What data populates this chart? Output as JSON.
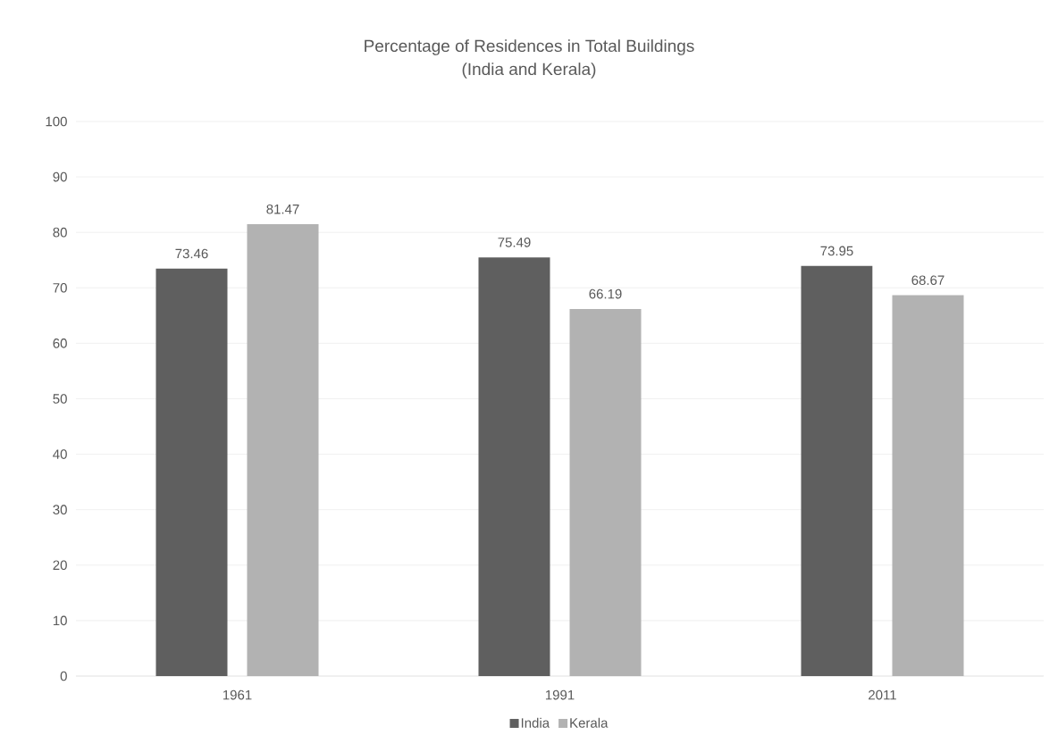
{
  "chart_data": {
    "type": "bar",
    "title": "Percentage of Residences in Total Buildings",
    "subtitle": "(India and Kerala)",
    "categories": [
      "1961",
      "1991",
      "2011"
    ],
    "series": [
      {
        "name": "India",
        "color": "#5f5f5f",
        "values": [
          73.46,
          75.49,
          73.95
        ]
      },
      {
        "name": "Kerala",
        "color": "#b2b2b2",
        "values": [
          81.47,
          66.19,
          68.67
        ]
      }
    ],
    "ylim": [
      0,
      100
    ],
    "yticks": [
      0,
      10,
      20,
      30,
      40,
      50,
      60,
      70,
      80,
      90,
      100
    ],
    "grid": "y",
    "legend": "bottom",
    "data_labels": true
  }
}
